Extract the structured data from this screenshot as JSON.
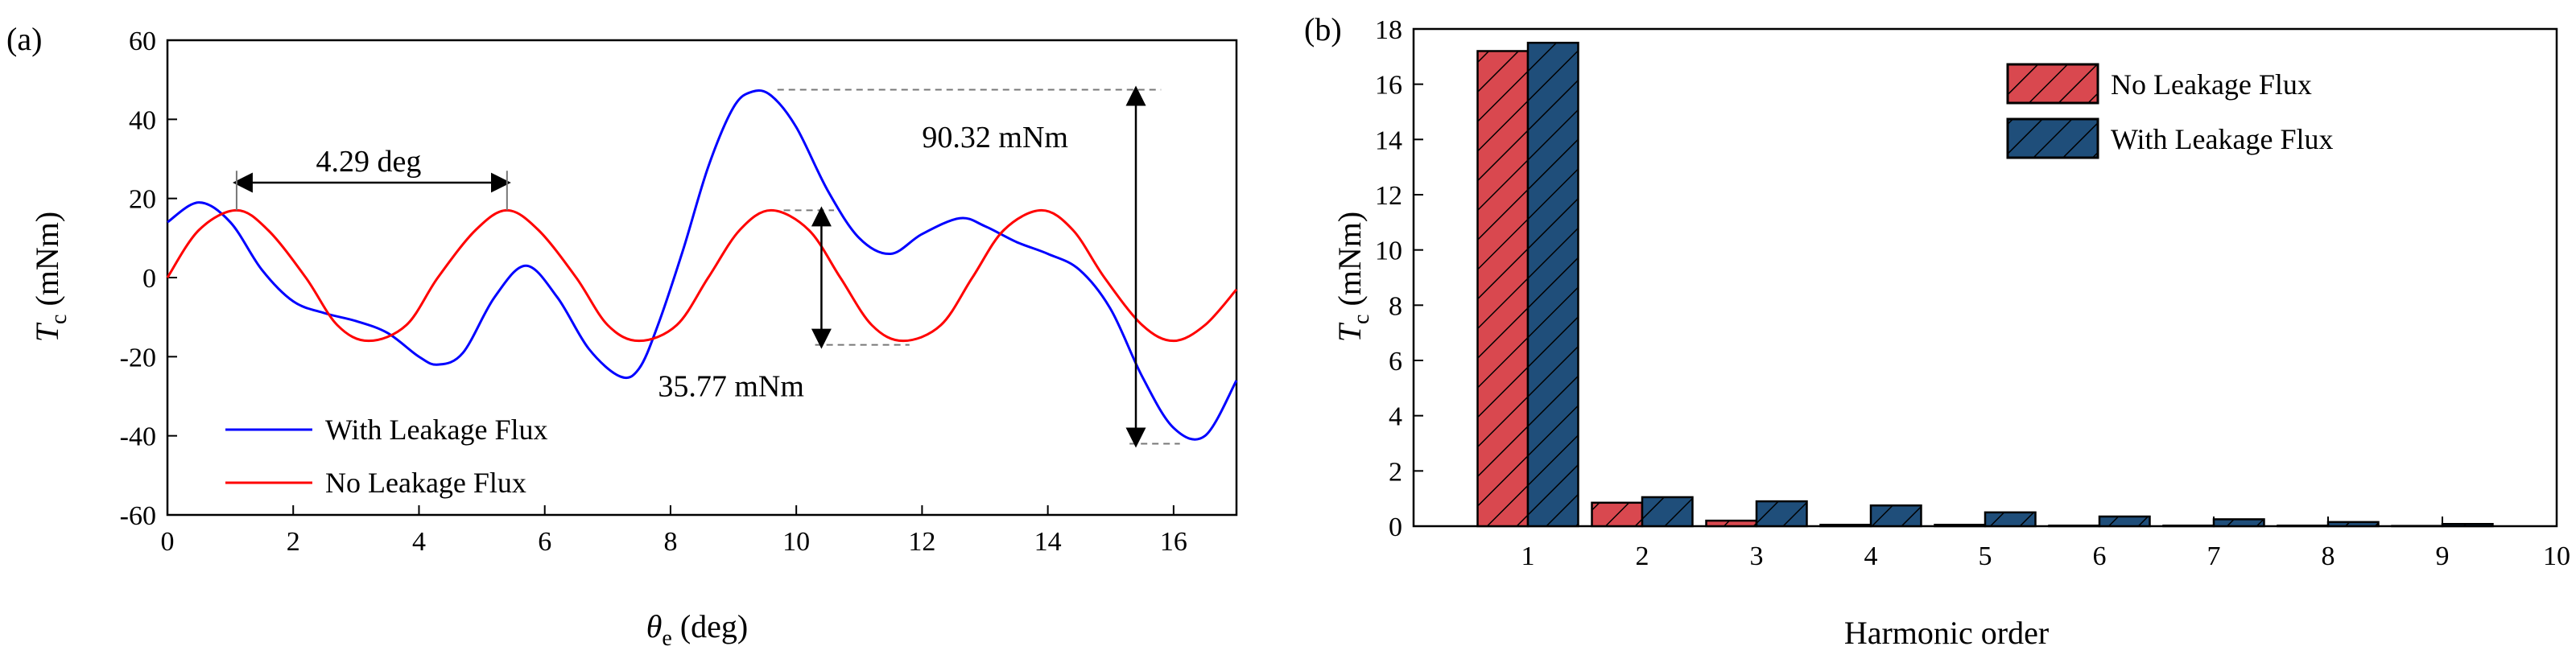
{
  "chart_data": [
    {
      "id": "a",
      "panel_label": "(a)",
      "type": "line",
      "xlabel_main": "θ",
      "xlabel_sub": "e",
      "xlabel_unit": " (deg)",
      "ylabel_main": "T",
      "ylabel_sub": "c",
      "ylabel_unit": " (mNm)",
      "xlim": [
        0,
        17
      ],
      "ylim": [
        -60,
        60
      ],
      "xticks": [
        0,
        2,
        4,
        6,
        8,
        10,
        12,
        14,
        16
      ],
      "yticks": [
        -60,
        -40,
        -20,
        0,
        20,
        40,
        60
      ],
      "series": [
        {
          "name": "With Leakage Flux",
          "color": "#0000ff",
          "x": [
            0,
            0.5,
            1.0,
            1.5,
            2.0,
            2.5,
            3.0,
            3.5,
            4.0,
            4.3,
            4.7,
            5.2,
            5.7,
            6.2,
            6.7,
            7.2,
            7.5,
            7.8,
            8.2,
            8.6,
            9.0,
            9.3,
            9.6,
            10.0,
            10.5,
            11.0,
            11.5,
            12.0,
            12.6,
            13.0,
            13.5,
            14.0,
            14.5,
            15.0,
            15.5,
            16.0,
            16.5,
            17.0
          ],
          "values": [
            14,
            19,
            14,
            2,
            -6,
            -9,
            -11,
            -14,
            -20,
            -22,
            -19,
            -5,
            3,
            -5,
            -18,
            -25,
            -23,
            -12,
            7,
            28,
            43,
            47,
            46,
            38,
            22,
            10,
            6,
            11,
            15,
            13,
            9,
            6,
            2,
            -8,
            -25,
            -38,
            -40,
            -26
          ]
        },
        {
          "name": "No Leakage Flux",
          "color": "#ff0000",
          "x": [
            0,
            0.5,
            1.1,
            1.6,
            2.2,
            2.7,
            3.2,
            3.8,
            4.3,
            4.9,
            5.4,
            5.9,
            6.5,
            7.0,
            7.5,
            8.1,
            8.6,
            9.1,
            9.6,
            10.2,
            10.7,
            11.2,
            11.7,
            12.3,
            12.8,
            13.3,
            13.9,
            14.4,
            14.9,
            15.5,
            16.0,
            16.5,
            17.0
          ],
          "values": [
            0,
            12,
            17,
            12,
            0,
            -12,
            -16,
            -12,
            0,
            12,
            17,
            12,
            0,
            -12,
            -16,
            -12,
            0,
            12,
            17,
            12,
            0,
            -12,
            -16,
            -12,
            0,
            12,
            17,
            12,
            0,
            -12,
            -16,
            -12,
            -3
          ]
        }
      ],
      "annotations": [
        {
          "text": "4.29 deg"
        },
        {
          "text": "90.32 mNm"
        },
        {
          "text": "35.77 mNm"
        }
      ],
      "legend_position": "bottom-left"
    },
    {
      "id": "b",
      "panel_label": "(b)",
      "type": "bar",
      "xlabel": "Harmonic order",
      "ylabel_main": "T",
      "ylabel_sub": "c",
      "ylabel_unit": " (mNm)",
      "xlim": [
        0,
        10
      ],
      "ylim": [
        0,
        18
      ],
      "xticks": [
        1,
        2,
        3,
        4,
        5,
        6,
        7,
        8,
        9,
        10
      ],
      "yticks": [
        0,
        2,
        4,
        6,
        8,
        10,
        12,
        14,
        16,
        18
      ],
      "categories": [
        1,
        2,
        3,
        4,
        5,
        6,
        7,
        8,
        9
      ],
      "series": [
        {
          "name": "No Leakage Flux",
          "color": "#d9484f",
          "values": [
            17.2,
            0.85,
            0.2,
            0.05,
            0.05,
            0.02,
            0.02,
            0.02,
            0.01
          ]
        },
        {
          "name": "With Leakage Flux",
          "color": "#1f4e7a",
          "values": [
            17.5,
            1.05,
            0.9,
            0.75,
            0.5,
            0.35,
            0.25,
            0.15,
            0.08
          ]
        }
      ],
      "hatch": "diagonal",
      "legend_position": "top-right"
    }
  ]
}
